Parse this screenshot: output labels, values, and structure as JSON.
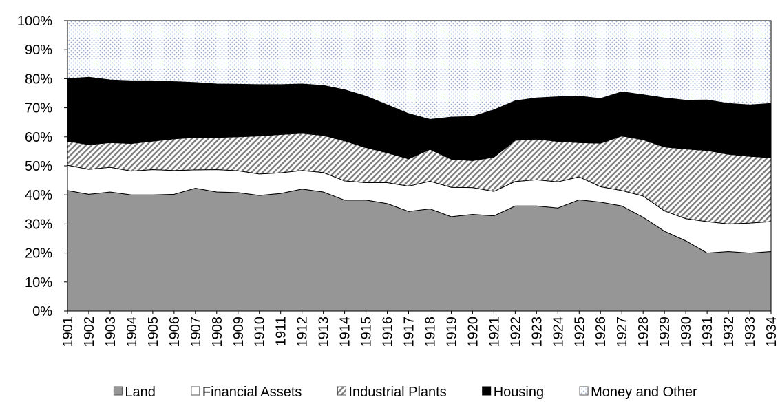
{
  "chart_data": {
    "type": "stacked-area",
    "categories": [
      "1901",
      "1902",
      "1903",
      "1904",
      "1905",
      "1906",
      "1907",
      "1908",
      "1909",
      "1910",
      "1911",
      "1912",
      "1913",
      "1914",
      "1915",
      "1916",
      "1917",
      "1918",
      "1919",
      "1920",
      "1921",
      "1922",
      "1923",
      "1924",
      "1925",
      "1926",
      "1927",
      "1928",
      "1929",
      "1930",
      "1931",
      "1932",
      "1933",
      "1934"
    ],
    "series": [
      {
        "name": "Land",
        "color": "#969696",
        "pattern": "solid",
        "values": [
          41.5,
          40.2,
          41,
          40,
          40,
          40.2,
          42.3,
          41,
          40.8,
          39.8,
          40.5,
          42,
          41,
          38.2,
          38.2,
          37,
          34.3,
          35.2,
          32.5,
          33.3,
          32.8,
          36.2,
          36.2,
          35.5,
          38.3,
          37.5,
          36.2,
          32.3,
          27.5,
          24.2,
          20,
          20.5,
          20,
          20.5
        ]
      },
      {
        "name": "Financial Assets",
        "color": "#ffffff",
        "pattern": "solid",
        "values": [
          8.7,
          8.6,
          8.5,
          8.2,
          8.7,
          8.2,
          6.3,
          7.7,
          7.5,
          7.4,
          7.1,
          6.4,
          6.7,
          6.6,
          6.0,
          7.2,
          8.7,
          9.5,
          10.1,
          9.2,
          8.4,
          8.4,
          9.0,
          9.0,
          7.9,
          5.3,
          5.3,
          7.3,
          7.0,
          7.6,
          10.8,
          9.5,
          10.3,
          10.3
        ]
      },
      {
        "name": "Industrial Plants",
        "color": "#808080",
        "pattern": "hatch",
        "values": [
          8.3,
          8.5,
          8.5,
          9.5,
          9.8,
          10.9,
          11.2,
          11.1,
          11.7,
          13.1,
          13.2,
          12.8,
          12.8,
          13.8,
          12.1,
          10.3,
          9.4,
          11.0,
          9.7,
          9.3,
          11.8,
          14.2,
          14.0,
          13.9,
          11.8,
          15.0,
          18.8,
          19.4,
          22.0,
          24.0,
          24.5,
          24.0,
          23.0,
          22.0
        ]
      },
      {
        "name": "Housing",
        "color": "#000000",
        "pattern": "solid",
        "values": [
          21.5,
          23.2,
          21.6,
          21.6,
          20.8,
          19.7,
          18.9,
          18.4,
          18.1,
          17.7,
          17.2,
          17.0,
          17.2,
          17.6,
          17.7,
          16.5,
          15.6,
          10.3,
          14.5,
          15.2,
          16.3,
          13.6,
          14.2,
          15.4,
          16.0,
          15.4,
          15.2,
          15.5,
          16.9,
          16.8,
          17.4,
          17.5,
          17.7,
          18.7
        ]
      },
      {
        "name": "Money and Other",
        "color": "#8fa8d8",
        "pattern": "dots",
        "values": [
          20,
          19.5,
          20.4,
          20.7,
          20.7,
          21,
          21.3,
          21.8,
          21.9,
          22,
          22,
          21.8,
          22.3,
          23.8,
          26,
          29,
          32,
          34,
          33.2,
          33,
          30.7,
          27.6,
          26.6,
          26.2,
          26,
          26.8,
          24.5,
          25.5,
          26.6,
          27.4,
          27.3,
          28.5,
          29,
          28.5
        ]
      }
    ],
    "ylim": [
      0,
      100
    ],
    "yticks": [
      {
        "value": 0,
        "label": "0%"
      },
      {
        "value": 10,
        "label": "10%"
      },
      {
        "value": 20,
        "label": "20%"
      },
      {
        "value": 30,
        "label": "30%"
      },
      {
        "value": 40,
        "label": "40%"
      },
      {
        "value": 50,
        "label": "50%"
      },
      {
        "value": 60,
        "label": "60%"
      },
      {
        "value": 70,
        "label": "70%"
      },
      {
        "value": 80,
        "label": "80%"
      },
      {
        "value": 90,
        "label": "90%"
      },
      {
        "value": 100,
        "label": "100%"
      }
    ],
    "legend": "bottom"
  }
}
